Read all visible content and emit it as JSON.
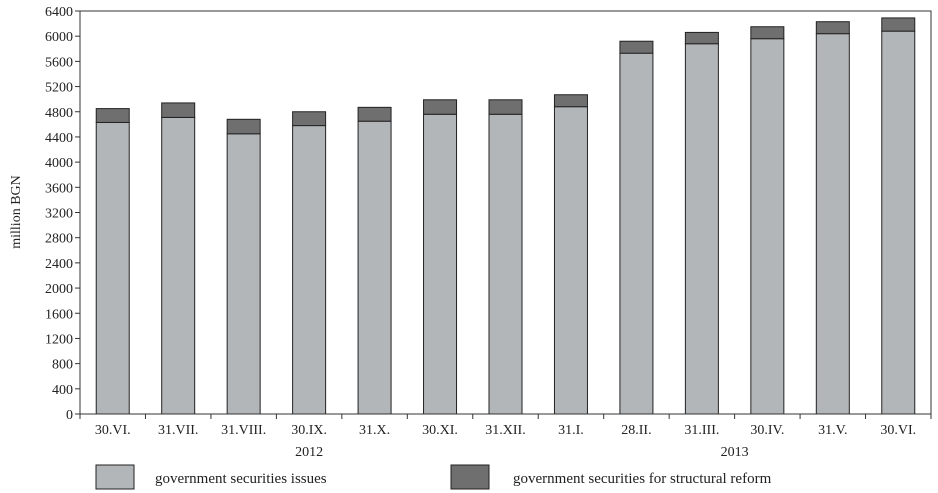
{
  "chart_data": {
    "type": "bar",
    "stacked": true,
    "ylabel": "million BGN",
    "ylim": [
      0,
      6400
    ],
    "yticks": [
      0,
      400,
      800,
      1200,
      1600,
      2000,
      2400,
      2800,
      3200,
      3600,
      4000,
      4400,
      4800,
      5200,
      5600,
      6000,
      6400
    ],
    "categories": [
      "30.VI.",
      "31.VII.",
      "31.VIII.",
      "30.IX.",
      "31.X.",
      "30.XI.",
      "31.XII.",
      "31.I.",
      "28.II.",
      "31.III.",
      "30.IV.",
      "31.V.",
      "30.VI."
    ],
    "year_groups": [
      {
        "label": "2012",
        "start": 0,
        "end": 6
      },
      {
        "label": "2013",
        "start": 7,
        "end": 12
      }
    ],
    "series": [
      {
        "name": "government securities issues",
        "color": "#b3b6b8",
        "values": [
          4630,
          4710,
          4450,
          4580,
          4650,
          4760,
          4760,
          4880,
          5730,
          5880,
          5960,
          6040,
          6080
        ]
      },
      {
        "name": "government securities for structural reform",
        "color": "#6f6f6f",
        "values": [
          220,
          230,
          230,
          220,
          220,
          230,
          230,
          190,
          190,
          180,
          190,
          190,
          210
        ]
      }
    ],
    "grid": false,
    "legend": "bottom"
  }
}
